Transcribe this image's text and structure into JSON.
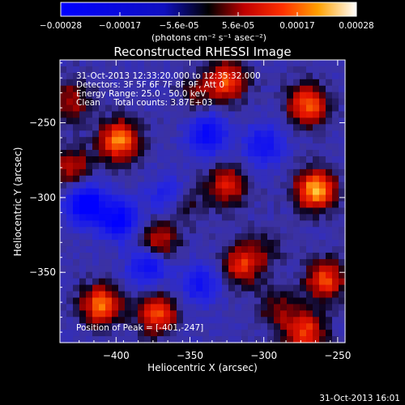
{
  "colorbar": {
    "ticks": [
      "-0.00028",
      "-0.00017",
      "-5.6e-05",
      "5.6e-05",
      "0.00017",
      "0.00028"
    ],
    "units": "(photons cm⁻² s⁻¹ asec⁻²)",
    "min": -0.00028,
    "max": 0.00028,
    "colors": [
      "#0000ff",
      "#1010c0",
      "#000000",
      "#ff0000",
      "#ff8000",
      "#ffff80",
      "#ffffff"
    ]
  },
  "chart_data": {
    "type": "heatmap",
    "title": "Reconstructed RHESSI Image",
    "xlabel": "Heliocentric X (arcsec)",
    "ylabel": "Heliocentric Y (arcsec)",
    "xlim": [
      -438,
      -245
    ],
    "ylim": [
      -397,
      -208
    ],
    "x_ticks": [
      -400,
      -350,
      -300,
      -250
    ],
    "x_tick_labels": [
      "−400",
      "−350",
      "−300",
      "−250"
    ],
    "y_ticks": [
      -250,
      -300,
      -350
    ],
    "y_tick_labels": [
      "−250",
      "−300",
      "−350"
    ],
    "annotations": [
      "31-Oct-2013 12:33:20.000 to 12:35:32.000",
      "Detectors: 3F 5F 6F 7F 8F 9F, Att 0",
      "Energy Range: 25.0 - 50.0 keV",
      "Clean     Total counts: 3.87E+03"
    ],
    "peak_label": "Position of Peak = [-401,-247]",
    "peak_position": [
      -401,
      -247
    ],
    "sources": [
      {
        "x": -410,
        "y": -372,
        "value": 0.00024
      },
      {
        "x": -398,
        "y": -262,
        "value": 0.00025
      },
      {
        "x": -363,
        "y": -300,
        "value": -0.00021
      },
      {
        "x": -372,
        "y": -330,
        "value": 0.00016
      },
      {
        "x": -372,
        "y": -378,
        "value": 0.0002
      },
      {
        "x": -358,
        "y": -303,
        "value": 0.00018
      },
      {
        "x": -325,
        "y": -222,
        "value": 0.0002
      },
      {
        "x": -325,
        "y": -292,
        "value": 0.00016
      },
      {
        "x": -315,
        "y": -345,
        "value": 0.00018
      },
      {
        "x": -270,
        "y": -238,
        "value": 0.00022
      },
      {
        "x": -265,
        "y": -295,
        "value": 0.00028
      },
      {
        "x": -258,
        "y": -355,
        "value": 0.0002
      },
      {
        "x": -272,
        "y": -390,
        "value": 0.0002
      },
      {
        "x": -430,
        "y": -280,
        "value": 0.00014
      },
      {
        "x": -430,
        "y": -235,
        "value": 0.00012
      },
      {
        "x": -420,
        "y": -305,
        "value": -0.00027
      },
      {
        "x": -398,
        "y": -315,
        "value": -0.00022
      },
      {
        "x": -378,
        "y": -345,
        "value": -0.00018
      },
      {
        "x": -338,
        "y": -258,
        "value": -0.0002
      },
      {
        "x": -300,
        "y": -265,
        "value": -0.00016
      },
      {
        "x": -343,
        "y": -358,
        "value": -0.00015
      },
      {
        "x": -300,
        "y": -335,
        "value": 6e-05
      },
      {
        "x": -345,
        "y": -230,
        "value": 8e-05
      },
      {
        "x": -290,
        "y": -375,
        "value": 0.0001
      }
    ]
  },
  "footer": {
    "timestamp": "31-Oct-2013 16:01"
  }
}
